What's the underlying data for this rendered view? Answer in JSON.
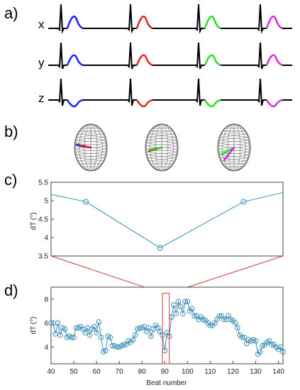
{
  "panel_labels": [
    "a)",
    "b)",
    "c)",
    "d)"
  ],
  "leads": [
    "x",
    "y",
    "z"
  ],
  "colors": {
    "beat1": "#1a1aff",
    "beat2": "#e02020",
    "beat3": "#22dd22",
    "beat4": "#dd22dd",
    "ecg": "#000000",
    "series": "#3a8fb7",
    "zoom": "#d63a3a"
  },
  "chart_data": [
    {
      "type": "line",
      "panel": "c)",
      "ylabel": "dT (°)",
      "xlabel": "",
      "ylim": [
        3.5,
        5.5
      ],
      "yticks": [
        3.5,
        4,
        4.5,
        5,
        5.5
      ],
      "yticklabels": [
        "3.5",
        "4",
        "4.5",
        "5",
        "5.5"
      ],
      "xlim": [
        0,
        100
      ],
      "x": [
        0,
        15,
        47,
        83,
        100
      ],
      "values": [
        5.17,
        4.97,
        3.72,
        4.97,
        5.22
      ],
      "markers_at": [
        1,
        2,
        3
      ],
      "grid": false
    },
    {
      "type": "line",
      "panel": "d)",
      "ylabel": "dT (°)",
      "xlabel": "Beat number",
      "xlim": [
        40,
        142
      ],
      "ylim": [
        2.6,
        9
      ],
      "xticks": [
        40,
        50,
        60,
        70,
        80,
        90,
        100,
        110,
        120,
        130,
        140
      ],
      "xticklabels": [
        "40",
        "50",
        "60",
        "70",
        "80",
        "90",
        "100",
        "110",
        "120",
        "130",
        "140"
      ],
      "yticks": [
        4,
        6,
        8
      ],
      "yticklabels": [
        "4",
        "6",
        "8"
      ],
      "zoom_box": {
        "x": [
          89,
          92
        ],
        "y": [
          2.6,
          8.5
        ]
      },
      "x": [
        40,
        41,
        42,
        43,
        44,
        45,
        46,
        47,
        48,
        49,
        50,
        51,
        52,
        53,
        54,
        55,
        56,
        57,
        58,
        59,
        60,
        61,
        62,
        63,
        64,
        65,
        66,
        67,
        68,
        69,
        70,
        71,
        72,
        73,
        74,
        75,
        76,
        77,
        78,
        79,
        80,
        81,
        82,
        83,
        84,
        85,
        86,
        87,
        88,
        89,
        90,
        91,
        92,
        93,
        94,
        95,
        96,
        97,
        98,
        99,
        100,
        101,
        102,
        103,
        104,
        105,
        106,
        107,
        108,
        109,
        110,
        111,
        112,
        113,
        114,
        115,
        116,
        117,
        118,
        119,
        120,
        121,
        122,
        123,
        124,
        125,
        126,
        127,
        128,
        129,
        130,
        131,
        132,
        133,
        134,
        135,
        136,
        137,
        138,
        139,
        140,
        141,
        142
      ],
      "values": [
        6.0,
        6.0,
        5.1,
        6.0,
        5.0,
        5.6,
        5.5,
        4.8,
        4.9,
        4.8,
        4.8,
        5.6,
        5.6,
        5.7,
        5.5,
        5.2,
        5.6,
        5.0,
        5.5,
        5.7,
        5.2,
        6.1,
        4.8,
        3.6,
        3.7,
        4.9,
        4.8,
        4.1,
        4.1,
        4.0,
        4.0,
        4.1,
        4.2,
        4.2,
        4.5,
        4.4,
        4.6,
        5.0,
        5.5,
        5.6,
        5.6,
        5.7,
        5.3,
        5.6,
        4.9,
        5.5,
        5.8,
        5.6,
        5.3,
        5.0,
        3.7,
        5.2,
        4.9,
        6.5,
        7.5,
        6.8,
        7.8,
        7.4,
        6.8,
        7.8,
        7.8,
        7.0,
        7.2,
        6.6,
        6.6,
        6.3,
        6.5,
        6.3,
        6.2,
        6.0,
        5.8,
        5.8,
        6.0,
        6.3,
        6.6,
        6.6,
        6.3,
        6.3,
        6.6,
        6.3,
        6.2,
        6.0,
        5.6,
        5.0,
        4.8,
        4.8,
        4.3,
        4.6,
        4.5,
        4.6,
        4.5,
        3.4,
        3.6,
        4.1,
        4.2,
        4.4,
        4.5,
        4.2,
        4.2,
        4.0,
        3.8,
        4.0,
        3.6
      ],
      "grid": false
    }
  ]
}
